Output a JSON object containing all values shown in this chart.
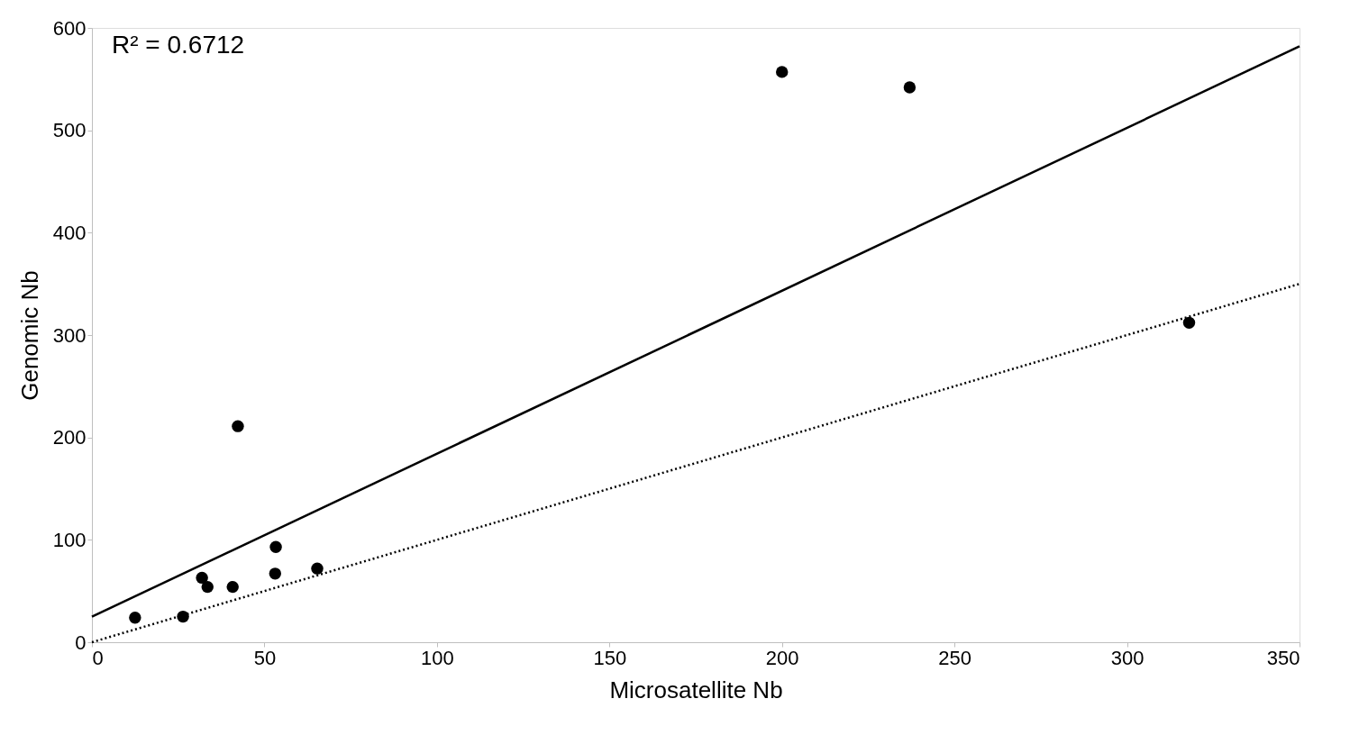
{
  "chart_data": {
    "type": "scatter",
    "xlabel": "Microsatellite Nb",
    "ylabel": "Genomic Nb",
    "xlim": [
      0,
      350
    ],
    "ylim": [
      0,
      600
    ],
    "xticks": [
      0,
      50,
      100,
      150,
      200,
      250,
      300,
      350
    ],
    "yticks": [
      0,
      100,
      200,
      300,
      400,
      500,
      600
    ],
    "annotations": [
      "R² = 0.6712"
    ],
    "series": [
      {
        "color": "#000000",
        "marker": "circle",
        "x": [
          12.5,
          26.4,
          31.9,
          33.5,
          40.8,
          42.3,
          53.3,
          53.1,
          65.3,
          200,
          237,
          318
        ],
        "values": [
          24,
          25,
          63,
          54,
          54,
          211,
          93,
          67,
          72,
          557,
          542,
          312
        ]
      },
      {
        "type": "line",
        "color": "#000000",
        "line_style": "solid",
        "x": [
          0,
          350
        ],
        "values": [
          25,
          582
        ]
      },
      {
        "type": "line",
        "color": "#000000",
        "line_style": "dotted",
        "x": [
          0,
          350
        ],
        "values": [
          0,
          350
        ]
      }
    ]
  }
}
